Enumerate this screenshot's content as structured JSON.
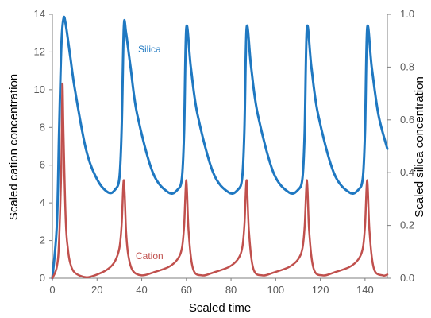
{
  "chart_data": {
    "type": "line",
    "title": "",
    "xlabel": "Scaled time",
    "ylabel": "Scaled cation concentration",
    "y2label": "Scaled silica concentration",
    "xlim": [
      0,
      150
    ],
    "ylim": [
      0,
      14
    ],
    "y2lim": [
      0,
      1.0
    ],
    "x_ticks": [
      "0",
      "20",
      "40",
      "60",
      "80",
      "100",
      "120",
      "140"
    ],
    "y_ticks": [
      "0",
      "2",
      "4",
      "6",
      "8",
      "10",
      "12",
      "14"
    ],
    "y2_ticks": [
      "0.0",
      "0.2",
      "0.4",
      "0.6",
      "0.8",
      "1.0"
    ],
    "grid": false,
    "legend": "inline labels",
    "colors": {
      "silica": "#1f78c1",
      "cation": "#c0504d",
      "axis": "#7f7f7f"
    },
    "series": [
      {
        "name": "Silica",
        "axis": "right",
        "x": [
          0,
          2,
          3,
          4,
          5,
          6,
          8,
          10,
          15,
          20,
          25,
          28,
          30,
          31,
          32,
          33,
          35,
          38,
          45,
          52,
          56,
          58,
          59,
          60,
          62,
          65,
          72,
          79,
          83,
          85,
          86,
          87,
          89,
          92,
          99,
          106,
          110,
          112,
          113,
          114,
          116,
          119,
          126,
          133,
          137,
          139,
          140,
          141,
          143,
          146,
          150
        ],
        "values": [
          0.0,
          0.2,
          0.55,
          0.88,
          0.985,
          0.96,
          0.84,
          0.72,
          0.49,
          0.375,
          0.325,
          0.335,
          0.38,
          0.56,
          0.95,
          0.93,
          0.8,
          0.62,
          0.4,
          0.325,
          0.335,
          0.38,
          0.56,
          0.95,
          0.8,
          0.62,
          0.4,
          0.325,
          0.335,
          0.38,
          0.56,
          0.95,
          0.8,
          0.62,
          0.4,
          0.325,
          0.335,
          0.38,
          0.56,
          0.95,
          0.8,
          0.62,
          0.4,
          0.325,
          0.335,
          0.38,
          0.56,
          0.95,
          0.8,
          0.62,
          0.49
        ]
      },
      {
        "name": "Cation",
        "axis": "left",
        "x": [
          0,
          2,
          3,
          4,
          4.5,
          5,
          6,
          7,
          8,
          10,
          15,
          20,
          25,
          28,
          30,
          31,
          32,
          33,
          34,
          36,
          40,
          45,
          52,
          56,
          58,
          59,
          60,
          61,
          63,
          67,
          72,
          79,
          83,
          85,
          86,
          87,
          88,
          90,
          94,
          99,
          106,
          110,
          112,
          113,
          114,
          115,
          117,
          121,
          126,
          133,
          137,
          139,
          140,
          141,
          142,
          144,
          148,
          150
        ],
        "values": [
          0,
          0.6,
          2.0,
          6.0,
          10.3,
          7.5,
          3.0,
          1.5,
          0.8,
          0.3,
          0.05,
          0.2,
          0.5,
          0.9,
          1.6,
          2.8,
          5.2,
          2.5,
          1.2,
          0.4,
          0.15,
          0.3,
          0.6,
          1.0,
          1.6,
          2.8,
          5.2,
          2.5,
          0.5,
          0.15,
          0.3,
          0.6,
          1.0,
          1.6,
          2.8,
          5.2,
          2.5,
          0.5,
          0.15,
          0.3,
          0.6,
          1.0,
          1.6,
          2.8,
          5.2,
          2.5,
          0.5,
          0.15,
          0.3,
          0.6,
          1.0,
          1.6,
          2.8,
          5.2,
          2.5,
          0.5,
          0.15,
          0.2
        ]
      }
    ]
  }
}
